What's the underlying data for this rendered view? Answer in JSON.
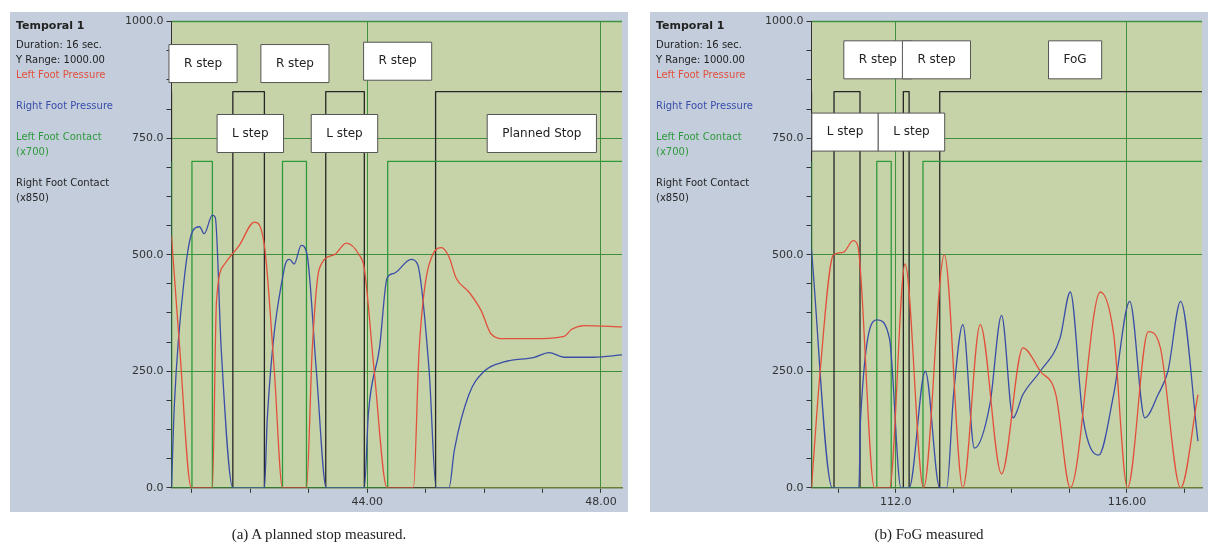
{
  "chart_data": [
    {
      "type": "line",
      "title": "(a) A planned stop measured.",
      "subtitle": "Temporal 1",
      "annotations": [
        "Duration: 16 sec.",
        "Y Range: 1000.00",
        "R step",
        "L step",
        "R step",
        "L step",
        "R step",
        "Planned Stop"
      ],
      "legend": "left",
      "grid": true,
      "marker": "none",
      "xlim": [
        40.65,
        48.36
      ],
      "xticks": [
        {
          "value": 41,
          "label": null
        },
        {
          "value": 42,
          "label": null
        },
        {
          "value": 43,
          "label": null
        },
        {
          "value": 44,
          "label": "44.00"
        },
        {
          "value": 45,
          "label": null
        },
        {
          "value": 46,
          "label": null
        },
        {
          "value": 47,
          "label": null
        },
        {
          "value": 48,
          "label": "48.00"
        }
      ],
      "ylim": [
        0,
        1000
      ],
      "yticks": [
        {
          "value": 0,
          "label": "0.0"
        },
        {
          "value": 62.5,
          "label": null
        },
        {
          "value": 125,
          "label": null
        },
        {
          "value": 187.5,
          "label": null
        },
        {
          "value": 250,
          "label": "250.0"
        },
        {
          "value": 312.5,
          "label": null
        },
        {
          "value": 375,
          "label": null
        },
        {
          "value": 437.5,
          "label": null
        },
        {
          "value": 500,
          "label": "500.0"
        },
        {
          "value": 562.5,
          "label": null
        },
        {
          "value": 625,
          "label": null
        },
        {
          "value": 687.5,
          "label": null
        },
        {
          "value": 750,
          "label": "750.0"
        },
        {
          "value": 812.5,
          "label": null
        },
        {
          "value": 875,
          "label": null
        },
        {
          "value": 937.5,
          "label": null
        },
        {
          "value": 1000,
          "label": "1000.0"
        }
      ],
      "series": [
        {
          "name": "Left Foot Pressure",
          "type": "line",
          "color": "#e2503c",
          "x": [
            40.65,
            40.79,
            40.99,
            41.35,
            41.42,
            41.56,
            41.81,
            42.07,
            42.24,
            42.41,
            42.55,
            42.96,
            43.06,
            43.18,
            43.44,
            43.64,
            43.86,
            43.95,
            44.12,
            44.34,
            44.79,
            44.89,
            45.14,
            45.27,
            45.4,
            45.52,
            45.74,
            45.95,
            46.12,
            46.34,
            46.86,
            47.37,
            47.5,
            47.71,
            48.36
          ],
          "values": [
            540,
            300,
            0,
            0,
            400,
            480,
            520,
            570,
            520,
            250,
            0,
            0,
            300,
            470,
            500,
            525,
            500,
            470,
            250,
            0,
            0,
            300,
            505,
            515,
            495,
            450,
            420,
            380,
            330,
            320,
            320,
            325,
            340,
            348,
            345
          ]
        },
        {
          "name": "Right Foot Pressure",
          "type": "line",
          "color": "#3a4ea8",
          "x": [
            40.65,
            40.7,
            40.87,
            41.01,
            41.13,
            41.21,
            41.35,
            41.4,
            41.5,
            41.7,
            42.24,
            42.29,
            42.58,
            42.67,
            42.75,
            42.87,
            42.97,
            43.13,
            43.3,
            43.95,
            44.02,
            44.21,
            44.34,
            44.46,
            44.75,
            44.86,
            45.06,
            45.18,
            45.4,
            45.49,
            45.74,
            46.0,
            46.34,
            46.86,
            47.11,
            47.37,
            47.88,
            48.36
          ],
          "values": [
            0,
            180,
            450,
            550,
            560,
            545,
            585,
            580,
            300,
            0,
            0,
            150,
            470,
            490,
            480,
            520,
            500,
            250,
            0,
            0,
            160,
            300,
            450,
            460,
            490,
            480,
            250,
            0,
            0,
            80,
            200,
            250,
            270,
            280,
            290,
            280,
            280,
            285
          ]
        },
        {
          "name": "Left Foot Contact (x700)",
          "type": "step",
          "color": "#2f9a3c",
          "x": [
            40.65,
            41.0,
            41.35,
            42.55,
            42.96,
            44.35,
            44.79,
            48.36
          ],
          "values": [
            700,
            0,
            700,
            0,
            700,
            0,
            700,
            700
          ]
        },
        {
          "name": "Right Foot Contact (x850)",
          "type": "step",
          "color": "#262626",
          "x": [
            40.65,
            41.7,
            42.24,
            43.29,
            43.95,
            45.17,
            45.4,
            48.36
          ],
          "values": [
            850,
            0,
            850,
            0,
            850,
            0,
            850,
            850
          ]
        }
      ]
    },
    {
      "type": "line",
      "title": "(b) FoG measured",
      "subtitle": "Temporal 1",
      "annotations": [
        "Duration: 16 sec.",
        "Y Range: 1000.00",
        "R step",
        "R step",
        "FoG",
        "L step",
        "L step"
      ],
      "legend": "left",
      "grid": true,
      "marker": "none",
      "xlim": [
        110.54,
        117.3
      ],
      "xticks": [
        {
          "value": 111,
          "label": null
        },
        {
          "value": 112,
          "label": "112.0"
        },
        {
          "value": 113,
          "label": null
        },
        {
          "value": 114,
          "label": null
        },
        {
          "value": 115,
          "label": null
        },
        {
          "value": 116,
          "label": "116.00"
        },
        {
          "value": 117,
          "label": null
        }
      ],
      "ylim": [
        0,
        1000
      ],
      "yticks": [
        {
          "value": 0,
          "label": "0.0"
        },
        {
          "value": 62.5,
          "label": null
        },
        {
          "value": 125,
          "label": null
        },
        {
          "value": 187.5,
          "label": null
        },
        {
          "value": 250,
          "label": "250.0"
        },
        {
          "value": 312.5,
          "label": null
        },
        {
          "value": 375,
          "label": null
        },
        {
          "value": 437.5,
          "label": null
        },
        {
          "value": 500,
          "label": "500.0"
        },
        {
          "value": 562.5,
          "label": null
        },
        {
          "value": 625,
          "label": null
        },
        {
          "value": 687.5,
          "label": null
        },
        {
          "value": 750,
          "label": "750.0"
        },
        {
          "value": 812.5,
          "label": null
        },
        {
          "value": 875,
          "label": null
        },
        {
          "value": 937.5,
          "label": null
        },
        {
          "value": 1000,
          "label": "1000.0"
        }
      ],
      "series": [
        {
          "name": "Left Foot Pressure",
          "type": "line",
          "color": "#e2503c",
          "x": [
            110.54,
            110.69,
            110.92,
            111.09,
            111.26,
            111.34,
            111.63,
            111.89,
            112.16,
            112.48,
            112.84,
            113.16,
            113.46,
            113.83,
            114.2,
            114.5,
            114.77,
            115.02,
            115.54,
            115.77,
            116.01,
            116.37,
            116.58,
            116.93,
            117.23
          ],
          "values": [
            0,
            250,
            500,
            505,
            530,
            520,
            0,
            0,
            480,
            0,
            500,
            0,
            350,
            30,
            300,
            250,
            200,
            0,
            420,
            330,
            0,
            335,
            300,
            0,
            200
          ]
        },
        {
          "name": "Right Foot Pressure",
          "type": "line",
          "color": "#3a4ea8",
          "x": [
            110.54,
            110.9,
            111.36,
            111.39,
            111.68,
            111.89,
            112.09,
            112.23,
            112.51,
            112.76,
            112.88,
            113.0,
            113.16,
            113.36,
            113.63,
            113.83,
            114.03,
            114.2,
            114.5,
            114.84,
            115.02,
            115.24,
            115.51,
            115.77,
            116.05,
            116.31,
            116.54,
            116.71,
            116.93,
            117.23
          ],
          "values": [
            510,
            0,
            0,
            150,
            360,
            320,
            0,
            0,
            250,
            0,
            0,
            200,
            350,
            85,
            180,
            370,
            150,
            200,
            250,
            320,
            420,
            150,
            70,
            200,
            400,
            150,
            200,
            250,
            400,
            100
          ]
        },
        {
          "name": "Left Foot Contact (x700)",
          "type": "step",
          "color": "#2f9a3c",
          "x": [
            110.54,
            111.67,
            111.92,
            112.47,
            112.58,
            117.3
          ],
          "values": [
            700,
            0,
            700,
            0,
            700,
            700
          ]
        },
        {
          "name": "Right Foot Contact (x850)",
          "type": "step",
          "color": "#262626",
          "x": [
            110.54,
            110.93,
            111.38,
            112.13,
            112.23,
            112.76,
            112.89,
            117.3
          ],
          "values": [
            850,
            0,
            850,
            0,
            850,
            0,
            850,
            850
          ]
        }
      ]
    }
  ]
}
